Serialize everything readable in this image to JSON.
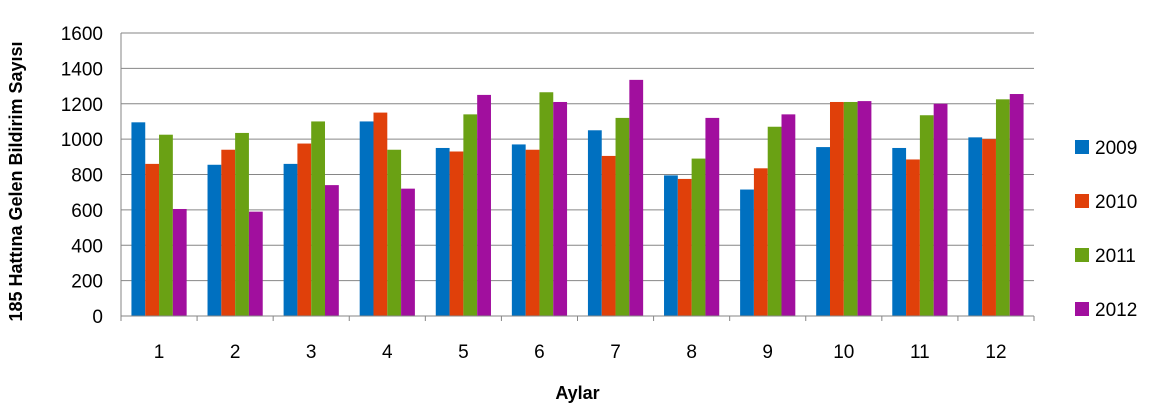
{
  "chart_data": {
    "type": "bar",
    "title": "",
    "xlabel": "Aylar",
    "ylabel": "185 Hattına Gelen Bildirim Sayısı",
    "ylim": [
      0,
      1600
    ],
    "yticks": [
      0,
      200,
      400,
      600,
      800,
      1000,
      1200,
      1400,
      1600
    ],
    "grid": true,
    "legend_position": "right",
    "categories": [
      "1",
      "2",
      "3",
      "4",
      "5",
      "6",
      "7",
      "8",
      "9",
      "10",
      "11",
      "12"
    ],
    "series": [
      {
        "name": "2009",
        "color": "#0070C0",
        "values": [
          1095,
          855,
          860,
          1100,
          950,
          970,
          1050,
          795,
          715,
          955,
          950,
          1010
        ]
      },
      {
        "name": "2010",
        "color": "#E0400A",
        "values": [
          860,
          940,
          975,
          1150,
          930,
          940,
          905,
          775,
          835,
          1210,
          885,
          1000
        ]
      },
      {
        "name": "2011",
        "color": "#6AA114",
        "values": [
          1025,
          1035,
          1100,
          940,
          1140,
          1265,
          1120,
          890,
          1070,
          1210,
          1135,
          1225
        ]
      },
      {
        "name": "2012",
        "color": "#A10F9E",
        "values": [
          605,
          590,
          740,
          720,
          1250,
          1210,
          1335,
          1120,
          1140,
          1215,
          1200,
          1255
        ]
      }
    ]
  }
}
